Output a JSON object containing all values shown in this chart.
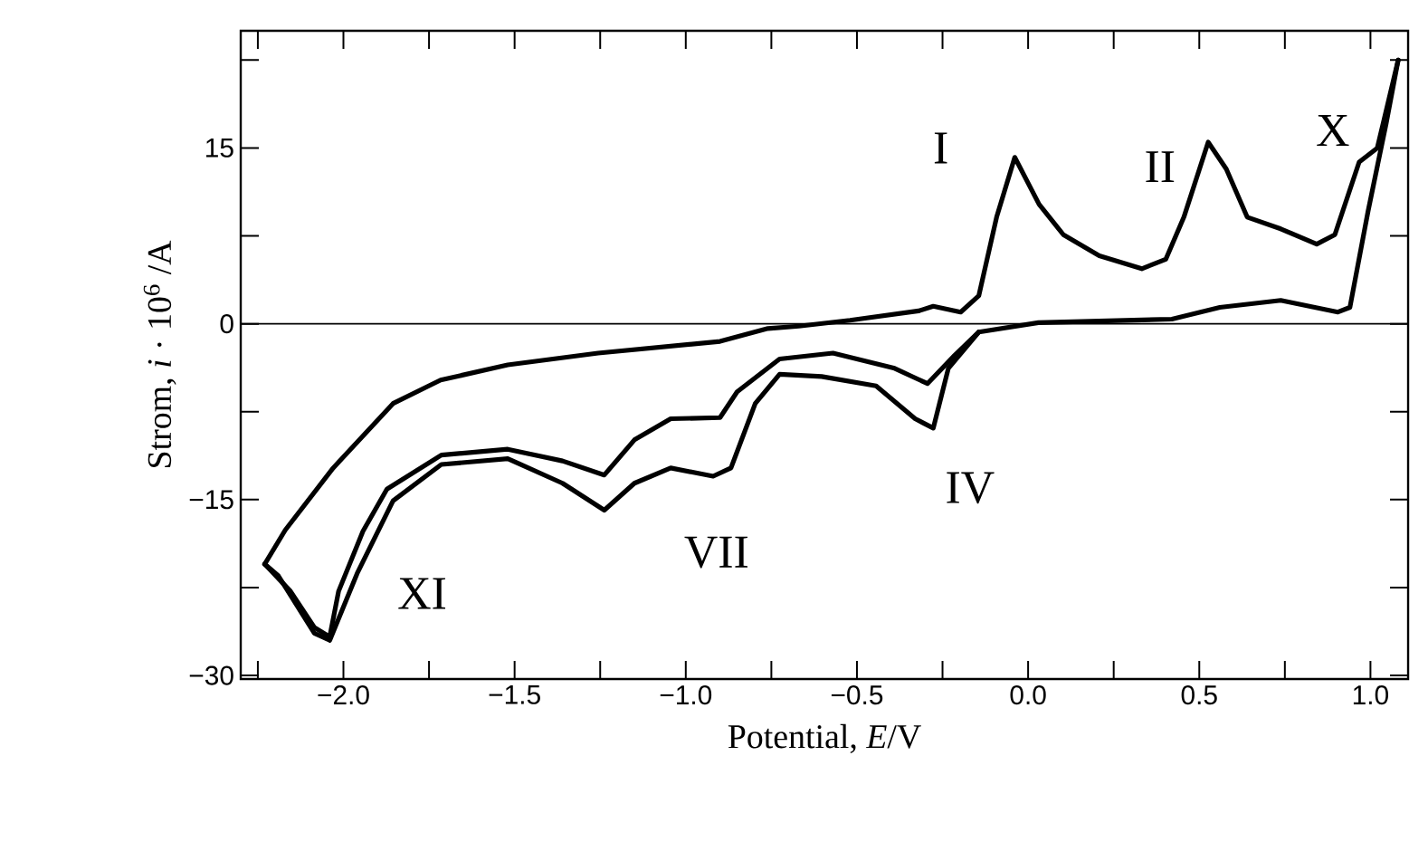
{
  "chart_data": {
    "type": "line",
    "xlabel": "Potential, *E*/V",
    "ylabel": "Strom, *i* · 10$^{6}$ /A",
    "xlim": [
      -2.3,
      1.11
    ],
    "ylim": [
      -30.3,
      25
    ],
    "xticks": [
      {
        "value": -2.25,
        "label": null
      },
      {
        "value": -2.0,
        "label": "−2.0"
      },
      {
        "value": -1.75,
        "label": null
      },
      {
        "value": -1.5,
        "label": "−1.5"
      },
      {
        "value": -1.25,
        "label": null
      },
      {
        "value": -1.0,
        "label": "−1.0"
      },
      {
        "value": -0.75,
        "label": null
      },
      {
        "value": -0.5,
        "label": "−0.5"
      },
      {
        "value": -0.25,
        "label": null
      },
      {
        "value": 0.0,
        "label": "0.0"
      },
      {
        "value": 0.25,
        "label": null
      },
      {
        "value": 0.5,
        "label": "0.5"
      },
      {
        "value": 0.75,
        "label": null
      },
      {
        "value": 1.0,
        "label": "1.0"
      }
    ],
    "yticks": [
      {
        "value": -30,
        "label": "−30"
      },
      {
        "value": -22.5,
        "label": null
      },
      {
        "value": -15,
        "label": "−15"
      },
      {
        "value": -7.5,
        "label": null
      },
      0,
      {
        "value": 7.5,
        "label": null
      },
      15,
      {
        "value": 22.5,
        "label": null
      }
    ],
    "marker": "none",
    "line_style": "solid",
    "ref_lines": [
      {
        "axis": "y",
        "value": 0,
        "color": "#000000"
      }
    ],
    "annotations": [
      "I",
      "II",
      "X",
      "IV",
      "VII",
      "XI"
    ],
    "series": [
      {
        "color": "#000000",
        "x": [
          -2.23,
          -2.17,
          -2.03,
          -1.855,
          -1.716,
          -1.52,
          -1.256,
          -0.9,
          -0.76,
          -0.67,
          -0.52,
          -0.32,
          -0.277,
          -0.197,
          -0.144,
          -0.092,
          -0.039,
          0.032,
          0.103,
          0.208,
          0.332,
          0.402,
          0.455,
          0.526,
          0.579,
          0.64,
          0.738,
          0.843,
          0.896,
          0.967,
          1.02,
          1.081
        ],
        "values": [
          -20.5,
          -17.6,
          -12.3,
          -6.8,
          -4.8,
          -3.5,
          -2.5,
          -1.5,
          -0.4,
          -0.2,
          0.3,
          1.1,
          1.5,
          1.0,
          2.4,
          9.1,
          14.2,
          10.2,
          7.6,
          5.8,
          4.7,
          5.5,
          9.1,
          15.5,
          13.2,
          9.1,
          8.1,
          6.8,
          7.6,
          13.8,
          15.0,
          22.5
        ]
      },
      {
        "color": "#000000",
        "x": [
          1.081,
          1.046,
          0.993,
          0.94,
          0.905,
          0.738,
          0.56,
          0.42,
          0.03,
          -0.144
        ],
        "values": [
          22.5,
          17.1,
          9.6,
          1.4,
          1.0,
          2.0,
          1.4,
          0.4,
          0.1,
          -0.7
        ]
      },
      {
        "color": "#000000",
        "x": [
          -0.144,
          -0.215,
          -0.294,
          -0.39,
          -0.57,
          -0.726,
          -0.85,
          -0.9,
          -1.044,
          -1.15,
          -1.238,
          -1.36,
          -1.52,
          -1.714,
          -1.873,
          -1.943,
          -2.014,
          -2.04,
          -2.085,
          -2.155,
          -2.23
        ],
        "values": [
          -0.7,
          -2.7,
          -5.1,
          -3.8,
          -2.5,
          -3.0,
          -5.8,
          -8.0,
          -8.1,
          -9.9,
          -12.9,
          -11.7,
          -10.7,
          -11.2,
          -14.1,
          -17.7,
          -22.8,
          -26.7,
          -25.9,
          -22.8,
          -20.5
        ]
      },
      {
        "color": "#000000",
        "x": [
          -0.144,
          -0.233,
          -0.277,
          -0.33,
          -0.444,
          -0.603,
          -0.726,
          -0.797,
          -0.868,
          -0.92,
          -1.044,
          -1.15,
          -1.238,
          -1.36,
          -1.52,
          -1.714,
          -1.855,
          -1.96,
          -2.04,
          -2.085,
          -2.19,
          -2.23
        ],
        "values": [
          -0.7,
          -3.8,
          -8.9,
          -8.1,
          -5.3,
          -4.5,
          -4.3,
          -6.8,
          -12.3,
          -13.0,
          -12.3,
          -13.6,
          -15.9,
          -13.6,
          -11.5,
          -12.0,
          -15.1,
          -21.3,
          -27.0,
          -26.4,
          -21.5,
          -20.5
        ]
      }
    ]
  }
}
